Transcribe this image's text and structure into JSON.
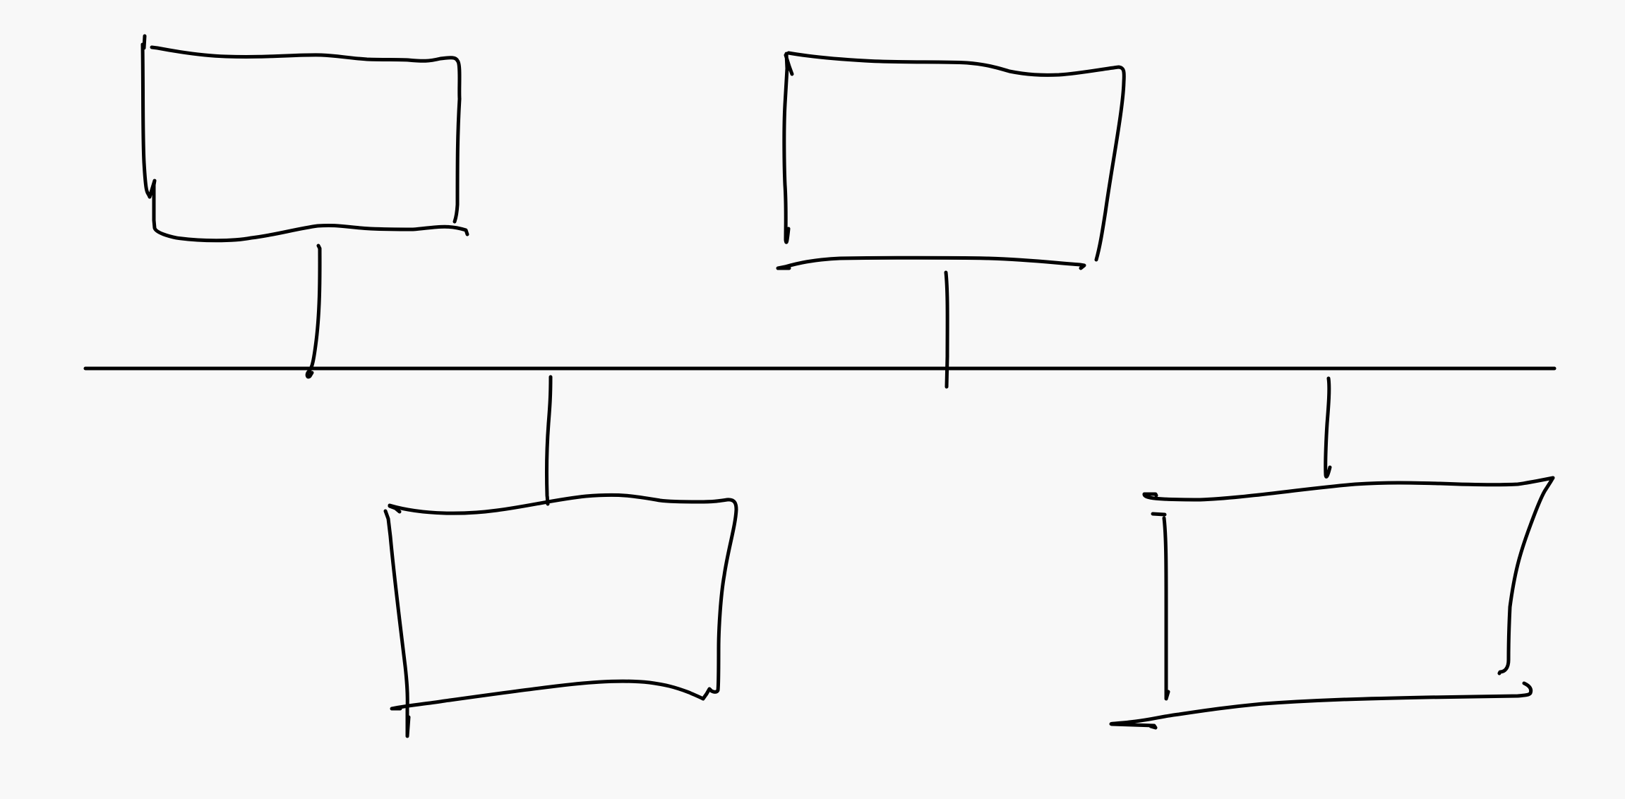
{
  "diagram": {
    "kind": "hand-drawn bus topology sketch",
    "background_color": "#f8f8f8",
    "ink_color": "#000000",
    "elements": [
      {
        "id": "bus-line",
        "label": ""
      },
      {
        "id": "node-top-left",
        "label": ""
      },
      {
        "id": "node-top-right",
        "label": ""
      },
      {
        "id": "node-bottom-left",
        "label": ""
      },
      {
        "id": "node-bottom-right",
        "label": ""
      }
    ]
  }
}
